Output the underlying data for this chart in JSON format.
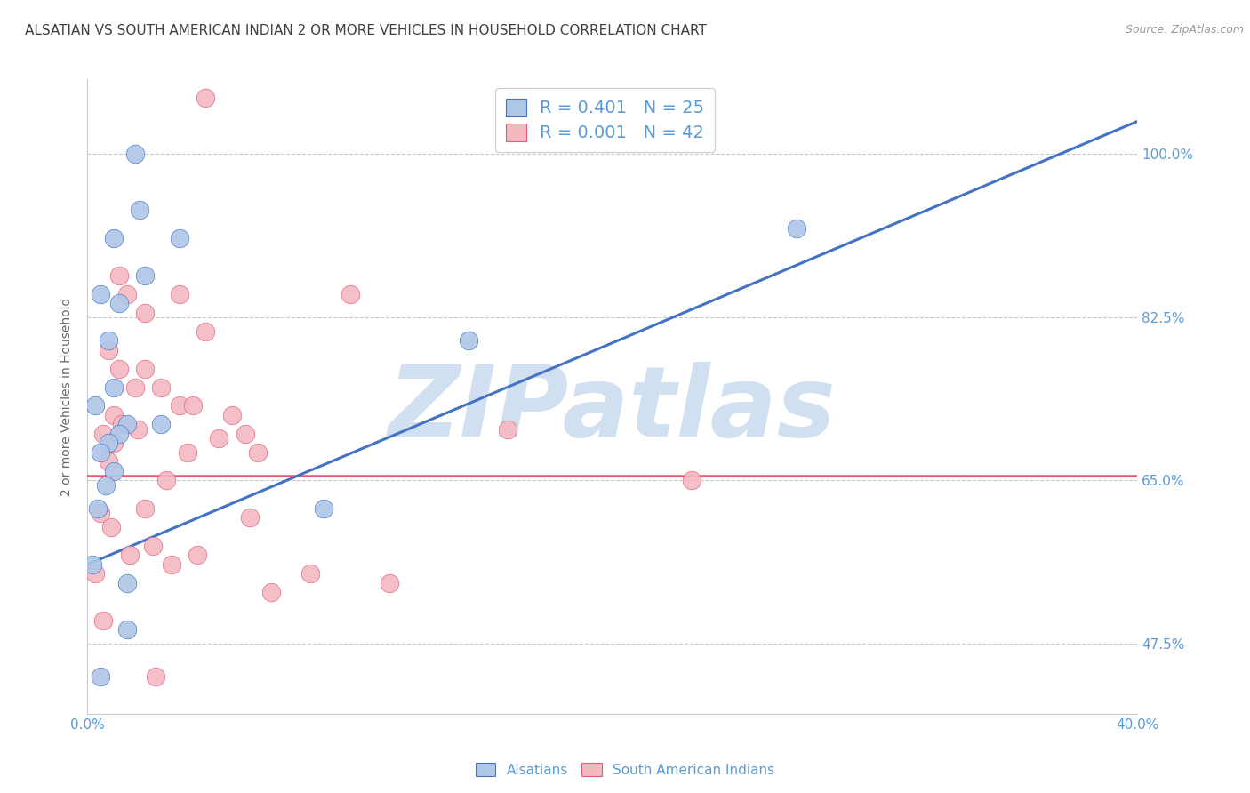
{
  "title": "ALSATIAN VS SOUTH AMERICAN INDIAN 2 OR MORE VEHICLES IN HOUSEHOLD CORRELATION CHART",
  "source": "Source: ZipAtlas.com",
  "ylabel": "2 or more Vehicles in Household",
  "xlim": [
    0.0,
    40.0
  ],
  "ylim": [
    40.0,
    108.0
  ],
  "yticks": [
    47.5,
    65.0,
    82.5,
    100.0
  ],
  "ytick_labels": [
    "47.5%",
    "65.0%",
    "82.5%",
    "100.0%"
  ],
  "blue_R": 0.401,
  "blue_N": 25,
  "pink_R": 0.001,
  "pink_N": 42,
  "blue_color": "#aec6e8",
  "blue_line_color": "#4472c4",
  "pink_color": "#f4b8c1",
  "pink_line_color": "#e05c78",
  "title_color": "#404040",
  "axis_color": "#5b9bd5",
  "watermark": "ZIPatlas",
  "watermark_color": "#d0e0f0",
  "blue_dots_x": [
    1.0,
    2.0,
    3.5,
    0.5,
    1.2,
    2.2,
    0.8,
    1.0,
    0.3,
    1.5,
    2.8,
    1.2,
    0.8,
    0.5,
    1.0,
    0.7,
    0.4,
    0.2,
    9.0,
    1.5,
    14.5,
    0.5,
    27.0,
    1.5,
    1.8
  ],
  "blue_dots_y": [
    91.0,
    94.0,
    91.0,
    85.0,
    84.0,
    87.0,
    80.0,
    75.0,
    73.0,
    71.0,
    71.0,
    70.0,
    69.0,
    68.0,
    66.0,
    64.5,
    62.0,
    56.0,
    62.0,
    49.0,
    80.0,
    44.0,
    92.0,
    54.0,
    100.0
  ],
  "pink_dots_x": [
    4.5,
    1.2,
    1.5,
    2.2,
    3.5,
    4.5,
    0.8,
    1.2,
    1.8,
    2.2,
    2.8,
    3.5,
    4.0,
    1.0,
    1.3,
    1.9,
    0.6,
    1.0,
    6.5,
    6.0,
    5.0,
    10.0,
    5.5,
    0.8,
    16.0,
    23.0,
    3.0,
    3.8,
    2.2,
    0.5,
    0.9,
    2.5,
    1.6,
    3.2,
    4.2,
    6.2,
    0.3,
    7.0,
    8.5,
    2.6,
    0.6,
    11.5
  ],
  "pink_dots_y": [
    106.0,
    87.0,
    85.0,
    83.0,
    85.0,
    81.0,
    79.0,
    77.0,
    75.0,
    77.0,
    75.0,
    73.0,
    73.0,
    72.0,
    71.0,
    70.5,
    70.0,
    69.0,
    68.0,
    70.0,
    69.5,
    85.0,
    72.0,
    67.0,
    70.5,
    65.0,
    65.0,
    68.0,
    62.0,
    61.5,
    60.0,
    58.0,
    57.0,
    56.0,
    57.0,
    61.0,
    55.0,
    53.0,
    55.0,
    44.0,
    50.0,
    54.0
  ],
  "blue_line_x0": 0.0,
  "blue_line_y0": 56.0,
  "blue_line_x1": 40.0,
  "blue_line_y1": 103.5,
  "pink_line_y": 65.5,
  "legend_R_blue": "R = 0.401",
  "legend_N_blue": "N = 25",
  "legend_R_pink": "R = 0.001",
  "legend_N_pink": "N = 42",
  "legend_color_blue": "#4472c4",
  "legend_color_pink": "#e05c78",
  "bg_color": "#ffffff",
  "grid_color": "#c8c8c8",
  "title_fontsize": 11,
  "label_fontsize": 10,
  "tick_fontsize": 11,
  "source_fontsize": 9,
  "legend_fontsize": 14
}
